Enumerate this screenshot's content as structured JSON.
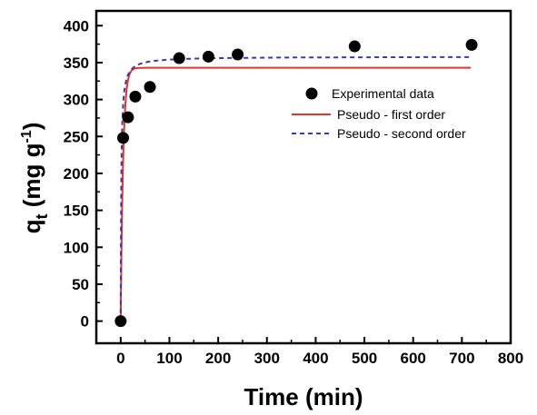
{
  "chart_data": {
    "type": "scatter",
    "title": "",
    "xlabel": "Time (min)",
    "ylabel_main": "q",
    "ylabel_sub": "t",
    "ylabel_unit": " (mg g",
    "ylabel_sup": "-1",
    "ylabel_close": ")",
    "xlim": [
      -50,
      800
    ],
    "ylim": [
      -30,
      420
    ],
    "xticks": [
      0,
      100,
      200,
      300,
      400,
      500,
      600,
      700,
      800
    ],
    "yticks": [
      0,
      50,
      100,
      150,
      200,
      250,
      300,
      350,
      400
    ],
    "grid": false,
    "legend_position": "right-middle",
    "series": [
      {
        "name": "Experimental data",
        "kind": "marker",
        "color": "#000000",
        "x": [
          0,
          5,
          15,
          30,
          60,
          120,
          180,
          240,
          480,
          720
        ],
        "y": [
          0,
          248,
          276,
          304,
          317,
          356,
          358,
          361,
          372,
          374
        ]
      },
      {
        "name": "Pseudo - first order",
        "kind": "line",
        "style": "solid",
        "color": "#e8322a",
        "model": {
          "qe": 343,
          "k": 0.2
        }
      },
      {
        "name": "Pseudo - second order",
        "kind": "line",
        "style": "dashed",
        "color": "#3a3aa8",
        "model": {
          "qe": 358,
          "k": 0.0025
        }
      }
    ]
  }
}
